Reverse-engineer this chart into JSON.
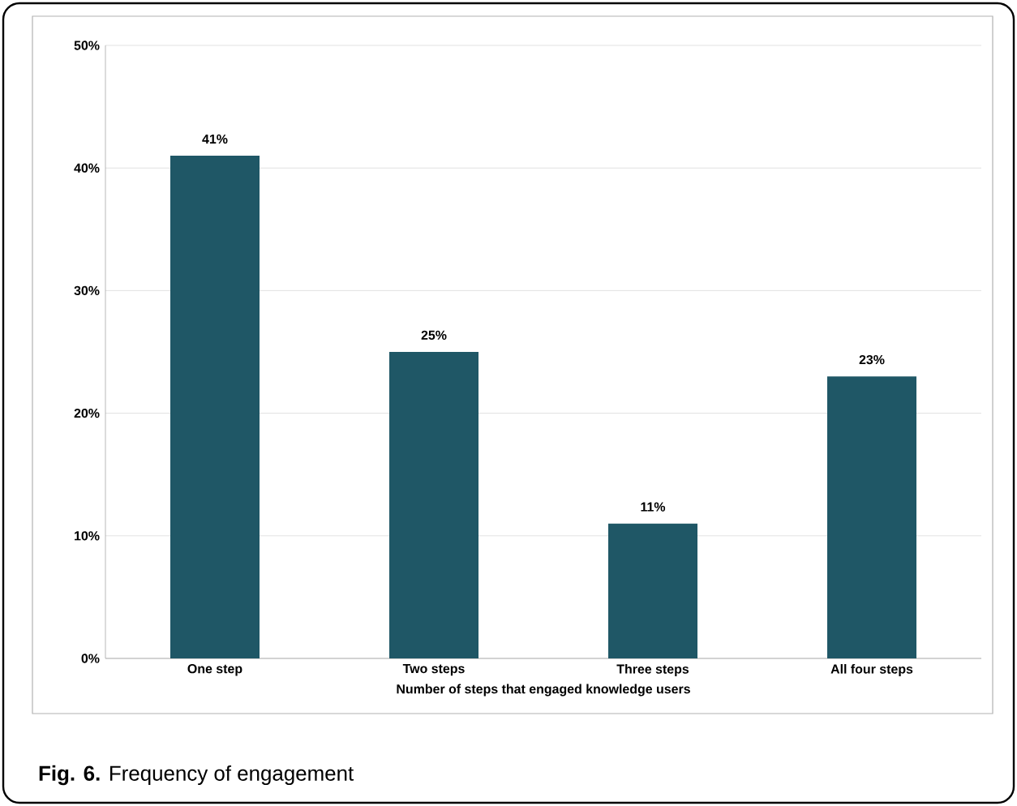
{
  "chart_data": {
    "type": "bar",
    "xlabel": "Number of steps that engaged knowledge users",
    "categories": [
      "One step",
      "Two steps",
      "Three steps",
      "All four steps"
    ],
    "values": [
      41,
      25,
      11,
      23
    ],
    "color": "#1f5766",
    "data_labels": true,
    "ylim": [
      0,
      50
    ],
    "yticks": [
      {
        "value": 0,
        "label": "0%"
      },
      {
        "value": 10,
        "label": "10%"
      },
      {
        "value": 20,
        "label": "20%"
      },
      {
        "value": 30,
        "label": "30%"
      },
      {
        "value": 40,
        "label": "40%"
      },
      {
        "value": 50,
        "label": "50%"
      }
    ],
    "value_labels": [
      "41%",
      "25%",
      "11%",
      "23%"
    ],
    "grid": "y",
    "annotations": [
      "**Fig. 6.** Frequency of engagement"
    ]
  }
}
